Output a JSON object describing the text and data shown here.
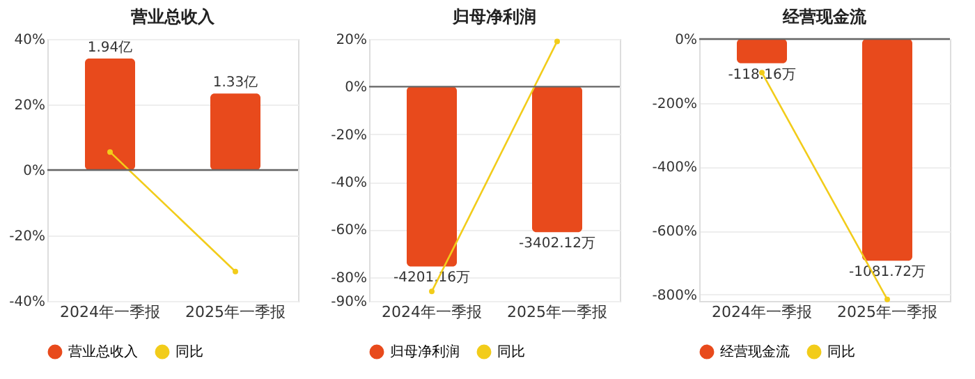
{
  "chart_data": [
    {
      "type": "bar",
      "title": "营业总收入",
      "categories": [
        "2024年一季报",
        "2025年一季报"
      ],
      "series": [
        {
          "name": "营业总收入",
          "axis": "y2",
          "color": "#e84a1c",
          "values": [
            1.94,
            1.33
          ],
          "value_labels": [
            "1.94亿",
            "1.33亿"
          ]
        },
        {
          "name": "同比",
          "type": "line",
          "color": "#f2cc1a",
          "values": [
            5.5,
            -31
          ]
        }
      ],
      "ylim": [
        -40,
        40
      ],
      "yticks": [
        {
          "value": -40,
          "label": "-40%"
        },
        {
          "value": -20,
          "label": "-20%"
        },
        {
          "value": 0,
          "label": "0%"
        },
        {
          "value": 20,
          "label": "20%"
        },
        {
          "value": 40,
          "label": "40%"
        }
      ],
      "y2lim": [
        -2.28,
        2.28
      ],
      "tick_labels": "xy",
      "grid": "y",
      "legend": "bottom",
      "marker": "circle"
    },
    {
      "type": "bar",
      "title": "归母净利润",
      "categories": [
        "2024年一季报",
        "2025年一季报"
      ],
      "series": [
        {
          "name": "归母净利润",
          "axis": "y2",
          "color": "#e84a1c",
          "values": [
            -4201.16,
            -3402.12
          ],
          "value_labels": [
            "-4201.16万",
            "-3402.12万"
          ]
        },
        {
          "name": "同比",
          "type": "line",
          "color": "#f2cc1a",
          "values": [
            -86,
            19
          ]
        }
      ],
      "ylim": [
        -90,
        20
      ],
      "yticks": [
        {
          "value": -90,
          "label": "-90%"
        },
        {
          "value": -80,
          "label": "-80%"
        },
        {
          "value": -60,
          "label": "-60%"
        },
        {
          "value": -40,
          "label": "-40%"
        },
        {
          "value": -20,
          "label": "-20%"
        },
        {
          "value": 0,
          "label": "0%"
        },
        {
          "value": 20,
          "label": "20%"
        }
      ],
      "y2lim": [
        -5008,
        1113
      ],
      "tick_labels": "xy",
      "grid": "y",
      "legend": "bottom",
      "marker": "circle"
    },
    {
      "type": "bar",
      "title": "经营现金流",
      "categories": [
        "2024年一季报",
        "2025年一季报"
      ],
      "series": [
        {
          "name": "经营现金流",
          "axis": "y2",
          "color": "#e84a1c",
          "values": [
            -118.16,
            -1081.72
          ],
          "value_labels": [
            "-118.16万",
            "-1081.72万"
          ]
        },
        {
          "name": "同比",
          "type": "line",
          "color": "#f2cc1a",
          "values": [
            -105,
            -815
          ]
        }
      ],
      "ylim": [
        -820,
        0
      ],
      "yticks": [
        {
          "value": -800,
          "label": "-800%"
        },
        {
          "value": -600,
          "label": "-600%"
        },
        {
          "value": -400,
          "label": "-400%"
        },
        {
          "value": -200,
          "label": "-200%"
        },
        {
          "value": 0,
          "label": "0%"
        }
      ],
      "y2lim": [
        -1278,
        0
      ],
      "tick_labels": "xy",
      "grid": "y",
      "legend": "bottom",
      "marker": "circle"
    }
  ]
}
